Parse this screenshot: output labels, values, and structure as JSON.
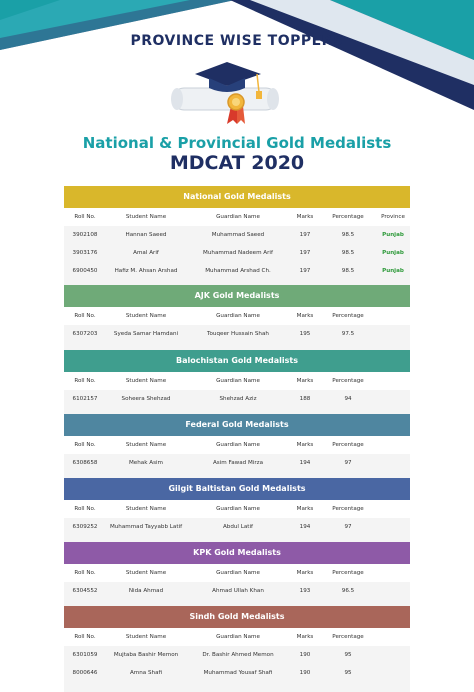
{
  "header": {
    "title": "PROVINCE WISE TOPPERS",
    "heading_1": "National & Provincial Gold Medalists",
    "heading_2": "MDCAT 2020"
  },
  "colors": {
    "navy": "#1f2f63",
    "teal": "#1aa0a7",
    "province_green": "#2e9a3a"
  },
  "sections": [
    {
      "title": "National Gold Medalists",
      "color": "#d9b72b",
      "headers": [
        "Roll No.",
        "Student Name",
        "Guardian Name",
        "Marks",
        "Percentage",
        "Province"
      ],
      "rows": [
        [
          "3902108",
          "Hannan Saeed",
          "Muhammad Saeed",
          "197",
          "98.5",
          "Punjab"
        ],
        [
          "3903176",
          "Amal Arif",
          "Muhammad Nadeem Arif",
          "197",
          "98.5",
          "Punjab"
        ],
        [
          "6900450",
          "Hafiz M. Ahsan Arshad",
          "Muhammad Arshad Ch.",
          "197",
          "98.5",
          "Punjab"
        ]
      ]
    },
    {
      "title": "AJK Gold Medalists",
      "color": "#6faa78",
      "headers": [
        "Roll No.",
        "Student Name",
        "Guardian Name",
        "Marks",
        "Percentage"
      ],
      "rows": [
        [
          "6307203",
          "Syeda Samar Hamdani",
          "Touqeer Hussain Shah",
          "195",
          "97.5"
        ]
      ]
    },
    {
      "title": "Balochistan Gold Medalists",
      "color": "#3f9e8e",
      "headers": [
        "Roll No.",
        "Student Name",
        "Guardian Name",
        "Marks",
        "Percentage"
      ],
      "rows": [
        [
          "6102157",
          "Soheera Shehzad",
          "Shehzad Aziz",
          "188",
          "94"
        ]
      ]
    },
    {
      "title": "Federal Gold Medalists",
      "color": "#4f86a0",
      "headers": [
        "Roll No.",
        "Student Name",
        "Guardian Name",
        "Marks",
        "Percentage"
      ],
      "rows": [
        [
          "6308658",
          "Mehak Asim",
          "Asim Fawad Mirza",
          "194",
          "97"
        ]
      ]
    },
    {
      "title": "Gilgit Baltistan Gold Medalists",
      "color": "#4a67a3",
      "headers": [
        "Roll No.",
        "Student Name",
        "Guardian Name",
        "Marks",
        "Percentage"
      ],
      "rows": [
        [
          "6309252",
          "Muhammad Tayyabb Latif",
          "Abdul Latif",
          "194",
          "97"
        ]
      ]
    },
    {
      "title": "KPK Gold Medalists",
      "color": "#8e5aa7",
      "headers": [
        "Roll No.",
        "Student Name",
        "Guardian Name",
        "Marks",
        "Percentage"
      ],
      "rows": [
        [
          "6304552",
          "Nida Ahmad",
          "Ahmad Ullah Khan",
          "193",
          "96.5"
        ]
      ]
    },
    {
      "title": "Sindh Gold Medalists",
      "color": "#a9665a",
      "headers": [
        "Roll No.",
        "Student Name",
        "Guardian Name",
        "Marks",
        "Percentage"
      ],
      "rows": [
        [
          "6301059",
          "Mujtaba Bashir Memon",
          "Dr. Bashir Ahmed Memon",
          "190",
          "95"
        ],
        [
          "8000646",
          "Amna Shafi",
          "Muhammad Yousaf Shafi",
          "190",
          "95"
        ]
      ]
    }
  ]
}
